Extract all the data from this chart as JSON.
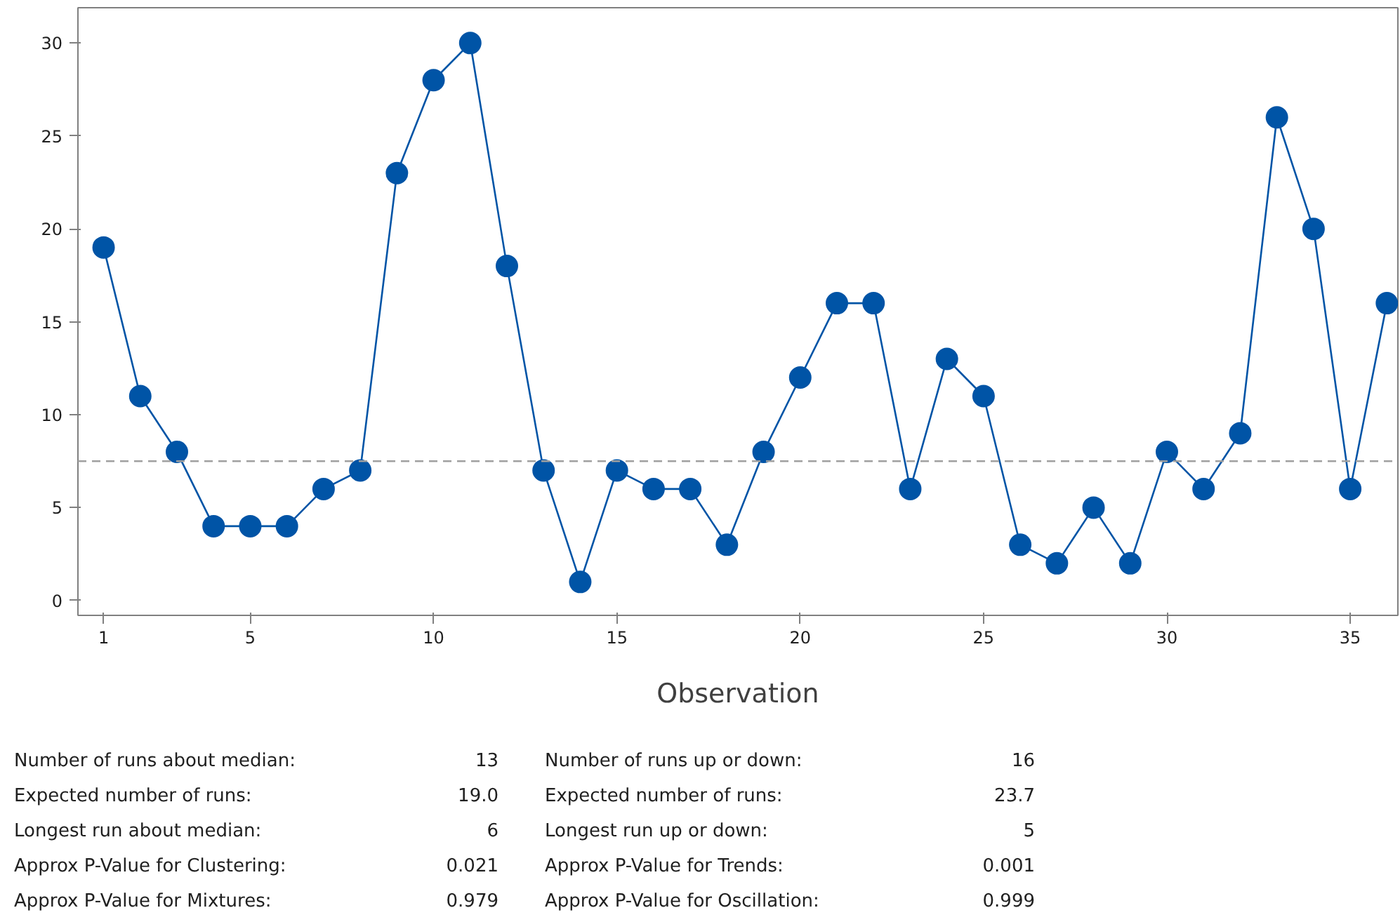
{
  "chart_data": {
    "type": "line",
    "xlabel": "Observation",
    "x": [
      1,
      2,
      3,
      4,
      5,
      6,
      7,
      8,
      9,
      10,
      11,
      12,
      13,
      14,
      15,
      16,
      17,
      18,
      19,
      20,
      21,
      22,
      23,
      24,
      25,
      26,
      27,
      28,
      29,
      30,
      31,
      32,
      33,
      34,
      35,
      36
    ],
    "series": [
      {
        "color": "#0054a6",
        "values": [
          19,
          11,
          8,
          4,
          4,
          4,
          6,
          7,
          23,
          28,
          30,
          18,
          7,
          1,
          7,
          6,
          6,
          3,
          8,
          12,
          16,
          16,
          6,
          13,
          11,
          3,
          2,
          5,
          2,
          8,
          6,
          9,
          26,
          20,
          6,
          16
        ]
      }
    ],
    "xlim": [
      0.3,
      36.3
    ],
    "xticks": [
      1,
      5,
      10,
      15,
      20,
      25,
      30,
      35
    ],
    "ylim": [
      -0.8,
      31.9
    ],
    "yticks": [
      0,
      5,
      10,
      15,
      20,
      25,
      30
    ],
    "grid": false,
    "marker": "circle",
    "line_style": "solid",
    "ref_lines": [
      {
        "axis": "y",
        "value": 7.5,
        "color": "#a0a0a0",
        "line_style": "dashed"
      }
    ],
    "annotations": [
      "Number of runs about median:",
      "13",
      "Expected number of runs:",
      "19.0",
      "Longest run about median:",
      "6",
      "Approx P-Value for Clustering:",
      "0.021",
      "Approx P-Value for Mixtures:",
      "0.979",
      "Number of runs up or down:",
      "16",
      "Expected number of runs:",
      "23.7",
      "Longest run up or down:",
      "5",
      "Approx P-Value for Trends:",
      "0.001",
      "Approx P-Value for Oscillation:",
      "0.999"
    ]
  }
}
